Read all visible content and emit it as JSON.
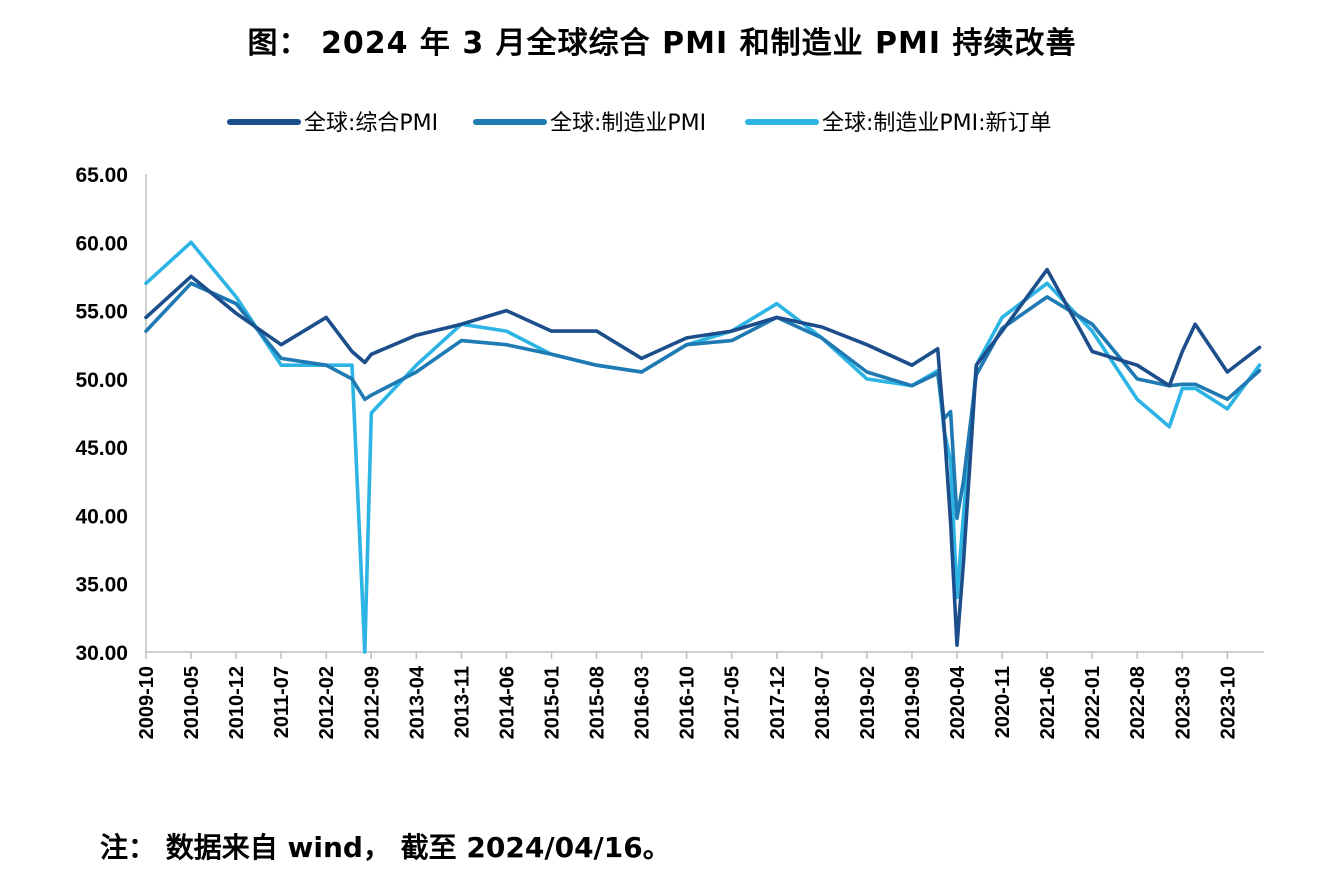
{
  "title": "图： 2024 年 3 月全球综合 PMI 和制造业 PMI 持续改善",
  "note": "注： 数据来自 wind， 截至 2024/04/16。",
  "chart_data": {
    "type": "line",
    "ylim": [
      30,
      65
    ],
    "ytick_labels": [
      "65.00",
      "60.00",
      "55.00",
      "50.00",
      "45.00",
      "40.00",
      "35.00",
      "30.00"
    ],
    "xtick_labels": [
      "2009-10",
      "2010-05",
      "2010-12",
      "2011-07",
      "2012-02",
      "2012-09",
      "2013-04",
      "2013-11",
      "2014-06",
      "2015-01",
      "2015-08",
      "2016-03",
      "2016-10",
      "2017-05",
      "2017-12",
      "2018-07",
      "2019-02",
      "2019-09",
      "2020-04",
      "2020-11",
      "2021-06",
      "2022-01",
      "2022-08",
      "2023-03",
      "2023-10"
    ],
    "legend_position": "top",
    "x": [
      "2009-10",
      "2010-05",
      "2010-12",
      "2011-07",
      "2012-02",
      "2012-06",
      "2012-08",
      "2012-09",
      "2013-04",
      "2013-11",
      "2014-06",
      "2015-01",
      "2015-08",
      "2016-03",
      "2016-10",
      "2017-05",
      "2017-12",
      "2018-07",
      "2019-02",
      "2019-09",
      "2020-01",
      "2020-02",
      "2020-03",
      "2020-04",
      "2020-05",
      "2020-07",
      "2020-11",
      "2021-06",
      "2022-01",
      "2022-08",
      "2023-01",
      "2023-03",
      "2023-05",
      "2023-10",
      "2024-03"
    ],
    "series": [
      {
        "name": "全球:综合PMI",
        "color": "#1c4e8c",
        "values": [
          54.5,
          57.5,
          54.8,
          52.5,
          54.5,
          52.0,
          51.2,
          51.8,
          53.2,
          54.0,
          55.0,
          53.5,
          53.5,
          51.5,
          53.0,
          53.5,
          54.5,
          53.8,
          52.5,
          51.0,
          52.2,
          46.5,
          39.5,
          30.5,
          36.5,
          51.0,
          53.5,
          58.0,
          52.0,
          51.0,
          49.5,
          52.0,
          54.0,
          50.5,
          52.3
        ]
      },
      {
        "name": "全球:制造业PMI",
        "color": "#1f79b3",
        "values": [
          53.5,
          57.0,
          55.5,
          51.5,
          51.0,
          50.0,
          48.5,
          48.8,
          50.5,
          52.8,
          52.5,
          51.8,
          51.0,
          50.5,
          52.5,
          52.8,
          54.5,
          53.0,
          50.5,
          49.5,
          50.4,
          47.1,
          47.6,
          39.8,
          42.5,
          50.3,
          53.7,
          56.0,
          54.0,
          50.0,
          49.5,
          49.6,
          49.6,
          48.5,
          50.6
        ]
      },
      {
        "name": "全球:制造业PMI:新订单",
        "color": "#2bb4e4",
        "values": [
          57.0,
          60.0,
          56.0,
          51.0,
          51.0,
          51.0,
          30.0,
          47.5,
          51.0,
          54.0,
          53.5,
          51.8,
          51.0,
          50.5,
          52.5,
          53.5,
          55.5,
          53.0,
          50.0,
          49.5,
          50.6,
          46.2,
          44.0,
          34.0,
          40.0,
          51.0,
          54.5,
          57.0,
          53.5,
          48.5,
          46.5,
          49.3,
          49.3,
          47.8,
          51.0
        ]
      }
    ]
  }
}
